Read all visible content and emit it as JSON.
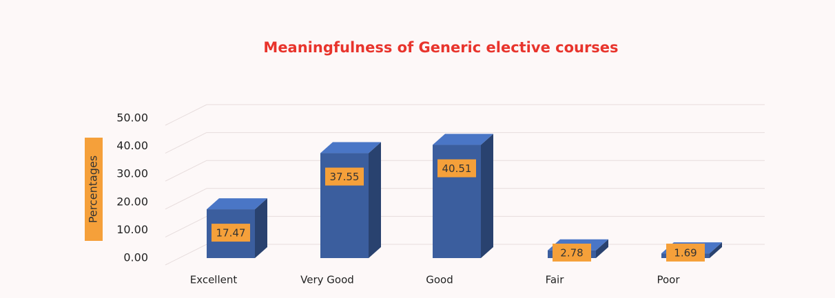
{
  "chart_data": {
    "type": "bar3d",
    "title": "Meaningfulness of Generic elective courses",
    "y_label": "Percentages",
    "categories": [
      "Excellent",
      "Very Good",
      "Good",
      "Fair",
      "Poor"
    ],
    "values": [
      17.47,
      37.55,
      40.51,
      2.78,
      1.69
    ],
    "color": "#3b5e9e",
    "label_color": "#f5a03a",
    "ylim": [
      0,
      50
    ],
    "yticks": [
      {
        "value": 0,
        "label": "0.00"
      },
      {
        "value": 10,
        "label": "10.00"
      },
      {
        "value": 20,
        "label": "20.00"
      },
      {
        "value": 30,
        "label": "30.00"
      },
      {
        "value": 40,
        "label": "40.00"
      },
      {
        "value": 50,
        "label": "50.00"
      }
    ],
    "grid": true
  }
}
